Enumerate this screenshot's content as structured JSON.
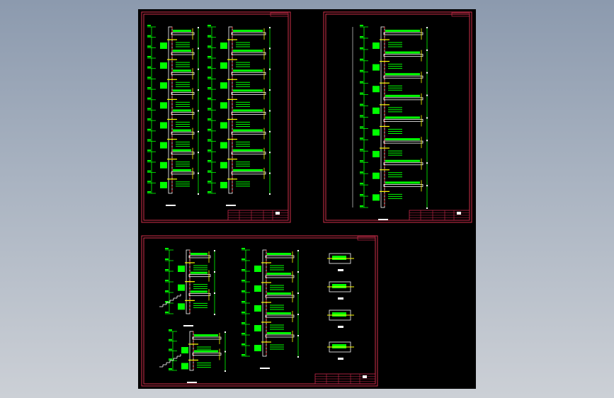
{
  "colors": {
    "background": "#000000",
    "sheet_border": "#d0304a",
    "title_block": "#c8284a",
    "linework": "#00ff00",
    "structure": "#ffffff",
    "dimension": "#ffff00",
    "axis": "#ff2020",
    "glass": "#80e0e0"
  }
}
